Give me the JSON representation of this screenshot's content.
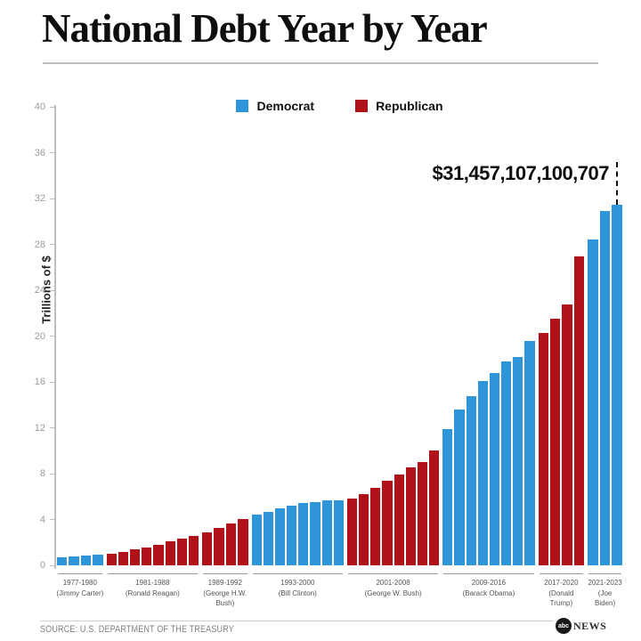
{
  "colors": {
    "democrat": "#2e95d8",
    "republican": "#b1121a",
    "axis": "#bdbdbd",
    "tick_text": "#9b9b9b"
  },
  "footer": {
    "source": "SOURCE: U.S. DEPARTMENT OF THE TREASURY",
    "logo_abc": "abc",
    "logo_news": "NEWS"
  },
  "chart_data": {
    "type": "bar",
    "title": "National Debt Year by Year",
    "ylabel": "Trillions of $",
    "ylim": [
      0,
      40
    ],
    "yticks": [
      0,
      4,
      8,
      12,
      16,
      20,
      24,
      28,
      32,
      36,
      40
    ],
    "grid": false,
    "legend_position": "top-center",
    "annotation": "$31,457,107,100,707",
    "legend": [
      {
        "label": "Democrat",
        "party": "Democrat"
      },
      {
        "label": "Republican",
        "party": "Republican"
      }
    ],
    "groups": [
      {
        "years": "1977-1980",
        "president": "Jimmy Carter",
        "party": "Democrat",
        "label_lines": [
          "1977-1980",
          "(Jimmy Carter)"
        ],
        "values": [
          0.7,
          0.77,
          0.83,
          0.91
        ]
      },
      {
        "years": "1981-1988",
        "president": "Ronald Reagan",
        "party": "Republican",
        "label_lines": [
          "1981-1988",
          "(Ronald Reagan)"
        ],
        "values": [
          1.03,
          1.14,
          1.38,
          1.57,
          1.82,
          2.13,
          2.35,
          2.6
        ]
      },
      {
        "years": "1989-1992",
        "president": "George H.W. Bush",
        "party": "Republican",
        "label_lines": [
          "1989-1992",
          "(George H.W.",
          "Bush)"
        ],
        "values": [
          2.86,
          3.23,
          3.67,
          4.06
        ]
      },
      {
        "years": "1993-2000",
        "president": "Bill Clinton",
        "party": "Democrat",
        "label_lines": [
          "1993-2000",
          "(Bill Clinton)"
        ],
        "values": [
          4.41,
          4.69,
          4.97,
          5.22,
          5.41,
          5.53,
          5.66,
          5.67
        ]
      },
      {
        "years": "2001-2008",
        "president": "George W. Bush",
        "party": "Republican",
        "label_lines": [
          "2001-2008",
          "(George W. Bush)"
        ],
        "values": [
          5.81,
          6.23,
          6.78,
          7.38,
          7.93,
          8.51,
          9.01,
          10.02
        ]
      },
      {
        "years": "2009-2016",
        "president": "Barack Obama",
        "party": "Democrat",
        "label_lines": [
          "2009-2016",
          "(Barack Obama)"
        ],
        "values": [
          11.91,
          13.56,
          14.79,
          16.07,
          16.74,
          17.82,
          18.15,
          19.57
        ]
      },
      {
        "years": "2017-2020",
        "president": "Donald Trump",
        "party": "Republican",
        "label_lines": [
          "2017-2020",
          "(Donald",
          "Trump)"
        ],
        "values": [
          20.24,
          21.52,
          22.72,
          26.95
        ]
      },
      {
        "years": "2021-2023",
        "president": "Joe Biden",
        "party": "Democrat",
        "label_lines": [
          "2021-2023",
          "(Joe",
          "Biden)"
        ],
        "values": [
          28.43,
          30.93,
          31.46
        ]
      }
    ]
  }
}
